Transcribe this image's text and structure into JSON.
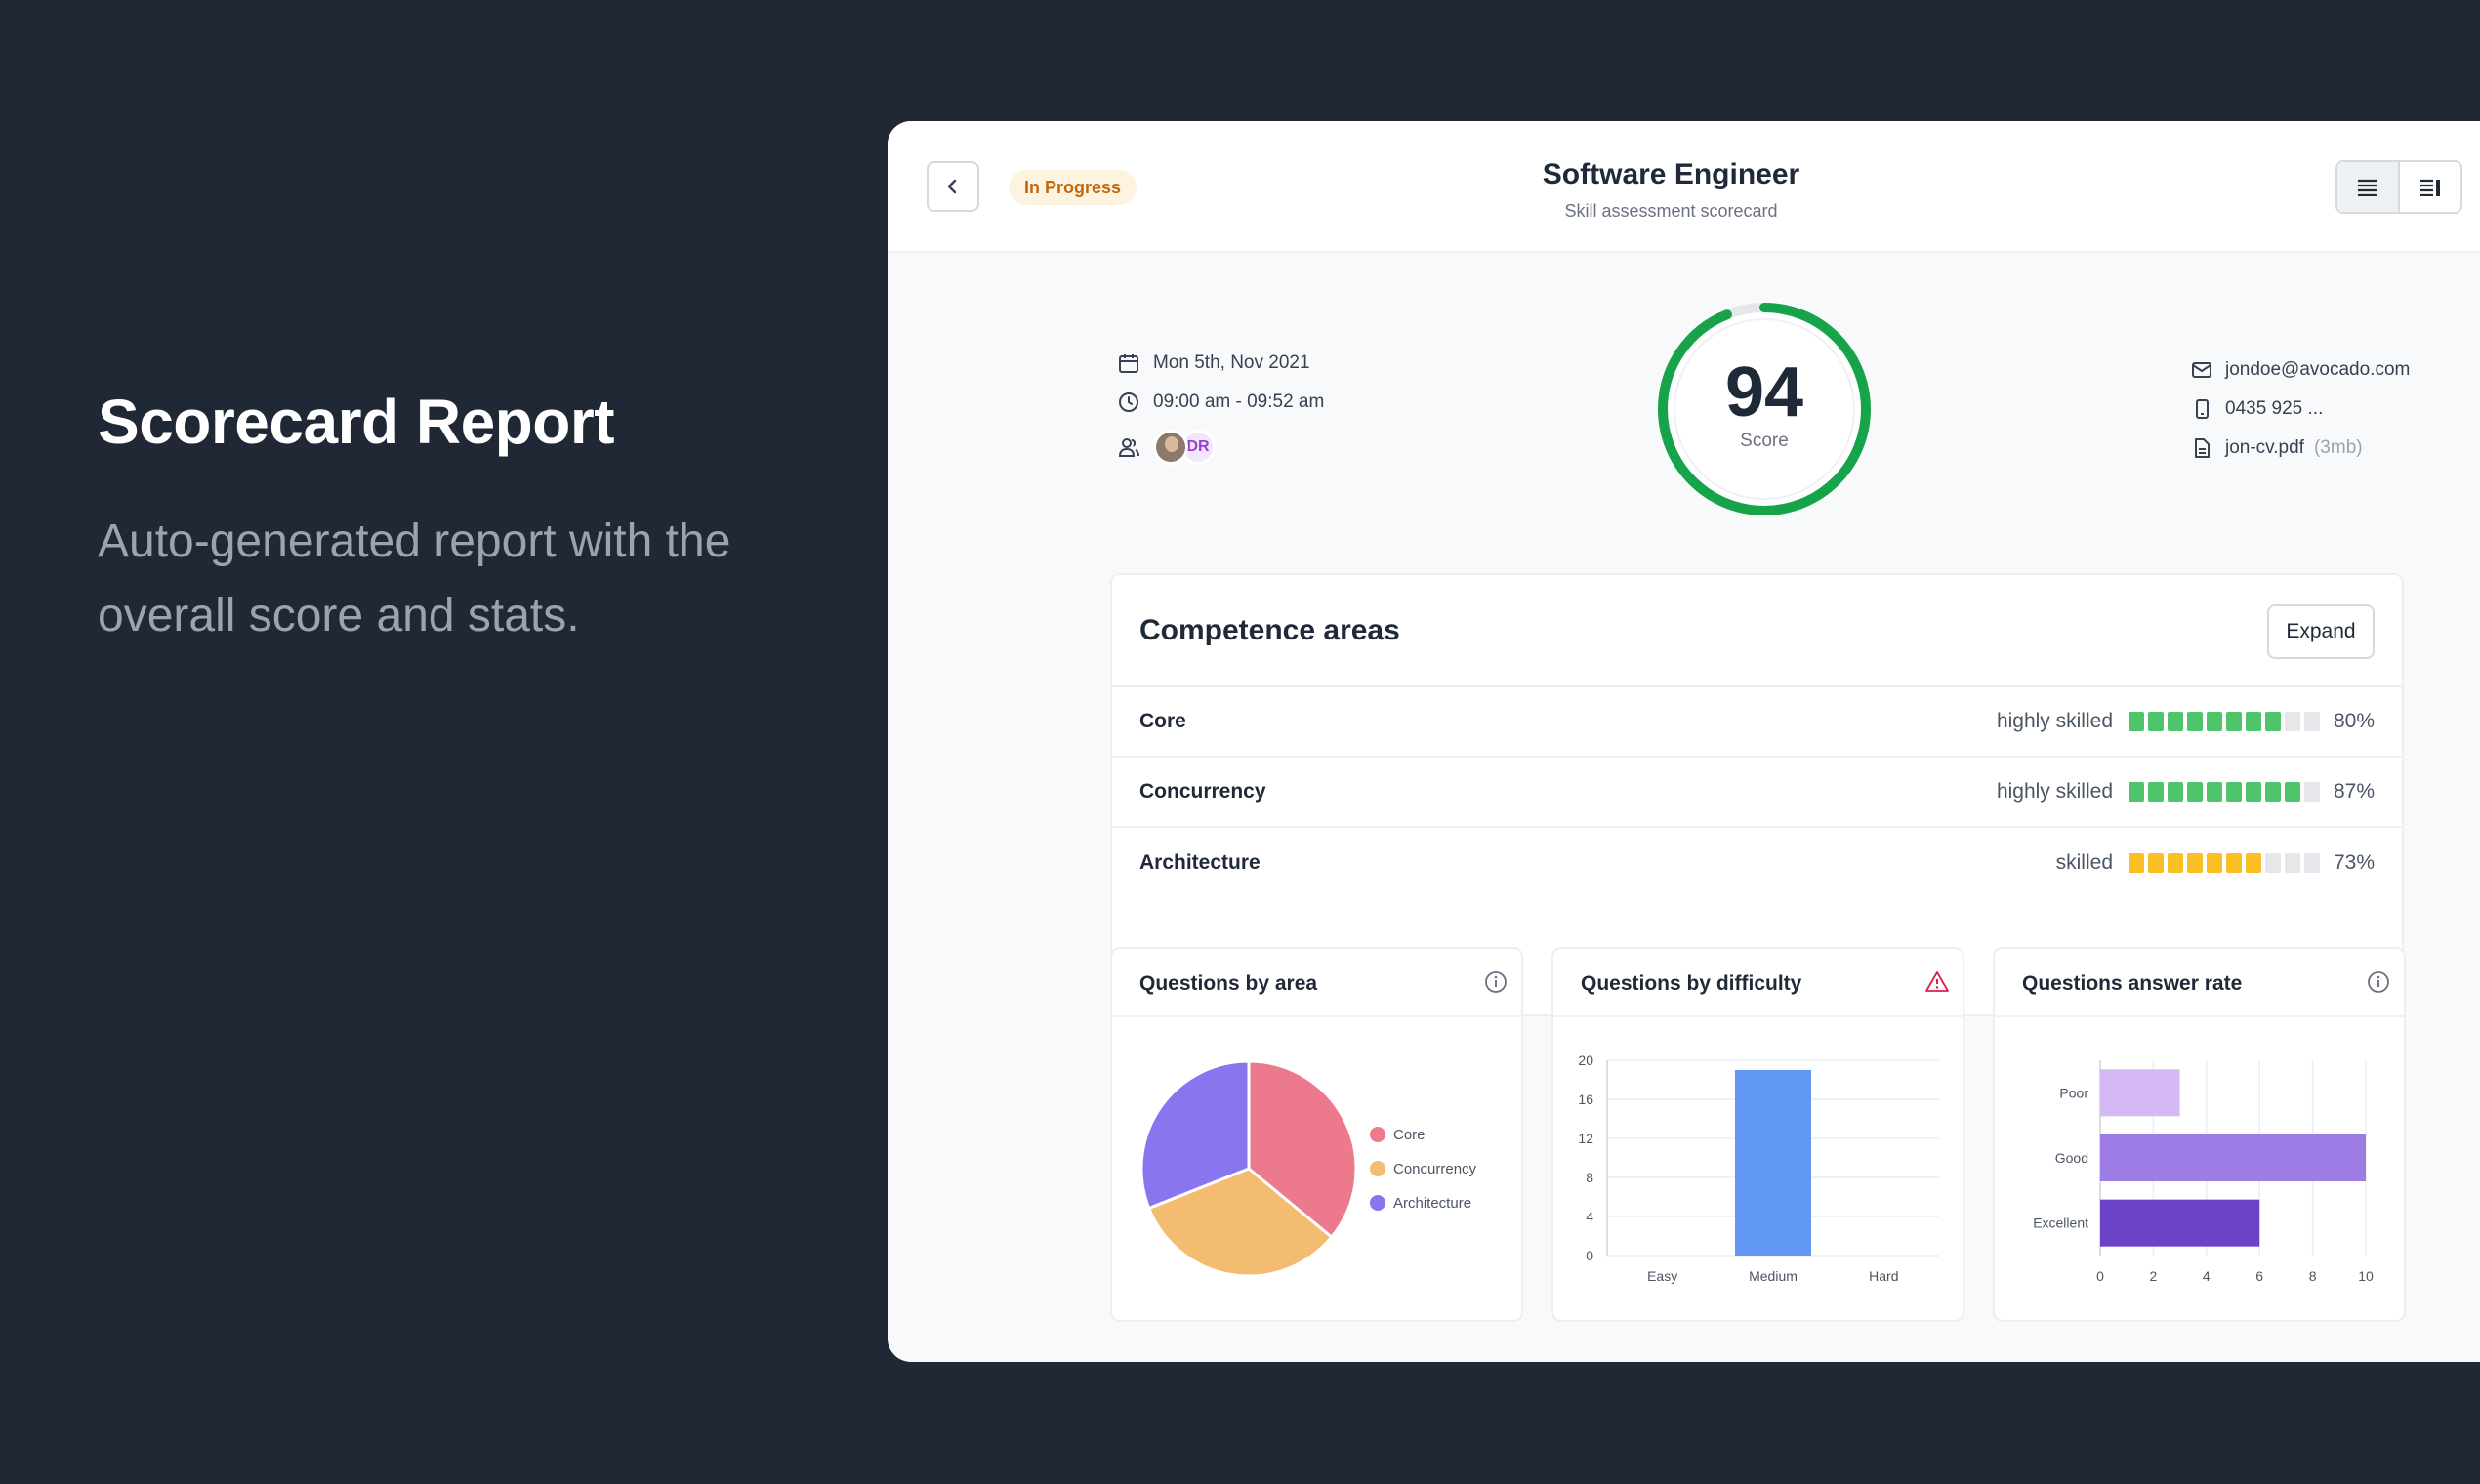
{
  "hero": {
    "title": "Scorecard Report",
    "subtitle": "Auto-generated report with the overall score and stats."
  },
  "header": {
    "status_badge": "In Progress",
    "title": "Software Engineer",
    "subtitle": "Skill assessment scorecard"
  },
  "meta": {
    "date": "Mon 5th, Nov 2021",
    "time": "09:00 am - 09:52 am",
    "interviewer_initials": "DR",
    "email": "jondoe@avocado.com",
    "phone": "0435 925 ...",
    "cv_file": "jon-cv.pdf",
    "cv_size": "(3mb)"
  },
  "score": {
    "value": "94",
    "label": "Score",
    "fraction": 0.94
  },
  "colors": {
    "green": "#16a34a",
    "amber": "#fbbf24",
    "seg_green": "#4ec46b",
    "seg_empty": "#e5e7eb"
  },
  "competence": {
    "title": "Competence areas",
    "expand_label": "Expand",
    "rows": [
      {
        "name": "Core",
        "level": "highly skilled",
        "pct": "80%",
        "filled": 8,
        "color": "green"
      },
      {
        "name": "Concurrency",
        "level": "highly skilled",
        "pct": "87%",
        "filled": 9,
        "color": "green"
      },
      {
        "name": "Architecture",
        "level": "skilled",
        "pct": "73%",
        "filled": 7,
        "color": "amber"
      }
    ]
  },
  "panels": {
    "area_title": "Questions by area",
    "difficulty_title": "Questions by difficulty",
    "answer_title": "Questions answer rate"
  },
  "chart_data": [
    {
      "type": "pie",
      "title": "Questions by area",
      "categories": [
        "Core",
        "Concurrency",
        "Architecture"
      ],
      "values": [
        36,
        33,
        31
      ],
      "colors": [
        "#ec7a8c",
        "#f4bc70",
        "#8b75ee"
      ],
      "legend": "right"
    },
    {
      "type": "bar",
      "title": "Questions by difficulty",
      "categories": [
        "Easy",
        "Medium",
        "Hard"
      ],
      "values": [
        0,
        19,
        0
      ],
      "ylim": [
        0,
        20
      ],
      "yticks": [
        0,
        4,
        8,
        12,
        16,
        20
      ],
      "color": "#6198f4"
    },
    {
      "type": "bar",
      "orientation": "horizontal",
      "title": "Questions answer rate",
      "categories": [
        "Poor",
        "Good",
        "Excellent"
      ],
      "values": [
        3,
        10,
        6
      ],
      "xlim": [
        0,
        10
      ],
      "xticks": [
        0,
        2,
        4,
        6,
        8,
        10
      ],
      "colors": [
        "#d4b9f5",
        "#9d7de5",
        "#6b43c7"
      ]
    }
  ]
}
